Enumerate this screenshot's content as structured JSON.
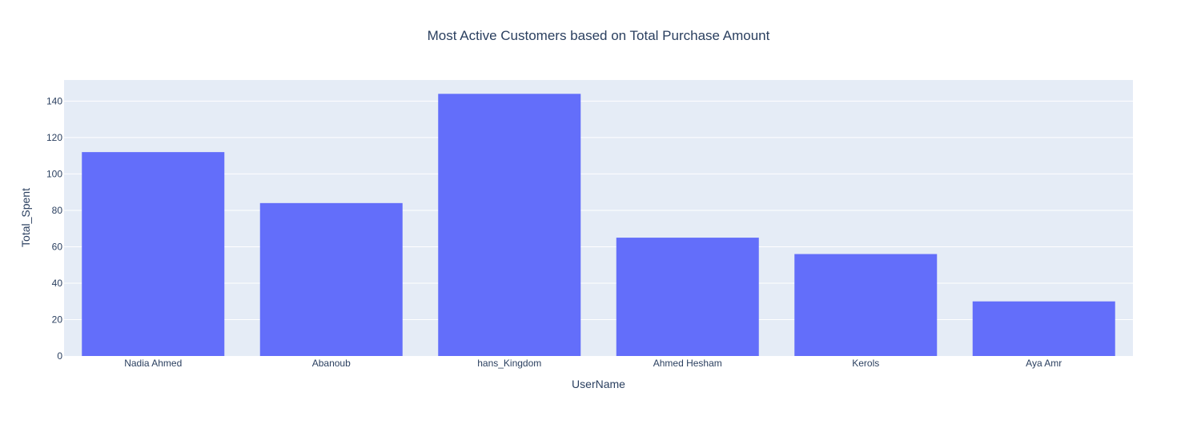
{
  "chart_data": {
    "type": "bar",
    "title": "Most Active Customers based on Total Purchase Amount",
    "xlabel": "UserName",
    "ylabel": "Total_Spent",
    "categories": [
      "Nadia Ahmed",
      "Abanoub",
      "hans_Kingdom",
      "Ahmed Hesham",
      "Kerols",
      "Aya Amr"
    ],
    "values": [
      112,
      84,
      144,
      65,
      56,
      30
    ],
    "ylim": [
      0,
      151.6
    ],
    "yticks": [
      0,
      20,
      40,
      60,
      80,
      100,
      120,
      140
    ],
    "grid": true,
    "legend": "none",
    "colors": {
      "bar": "#636efa",
      "plot_bg": "#e5ecf6",
      "grid": "#ffffff",
      "text": "#2a3f5f"
    }
  }
}
